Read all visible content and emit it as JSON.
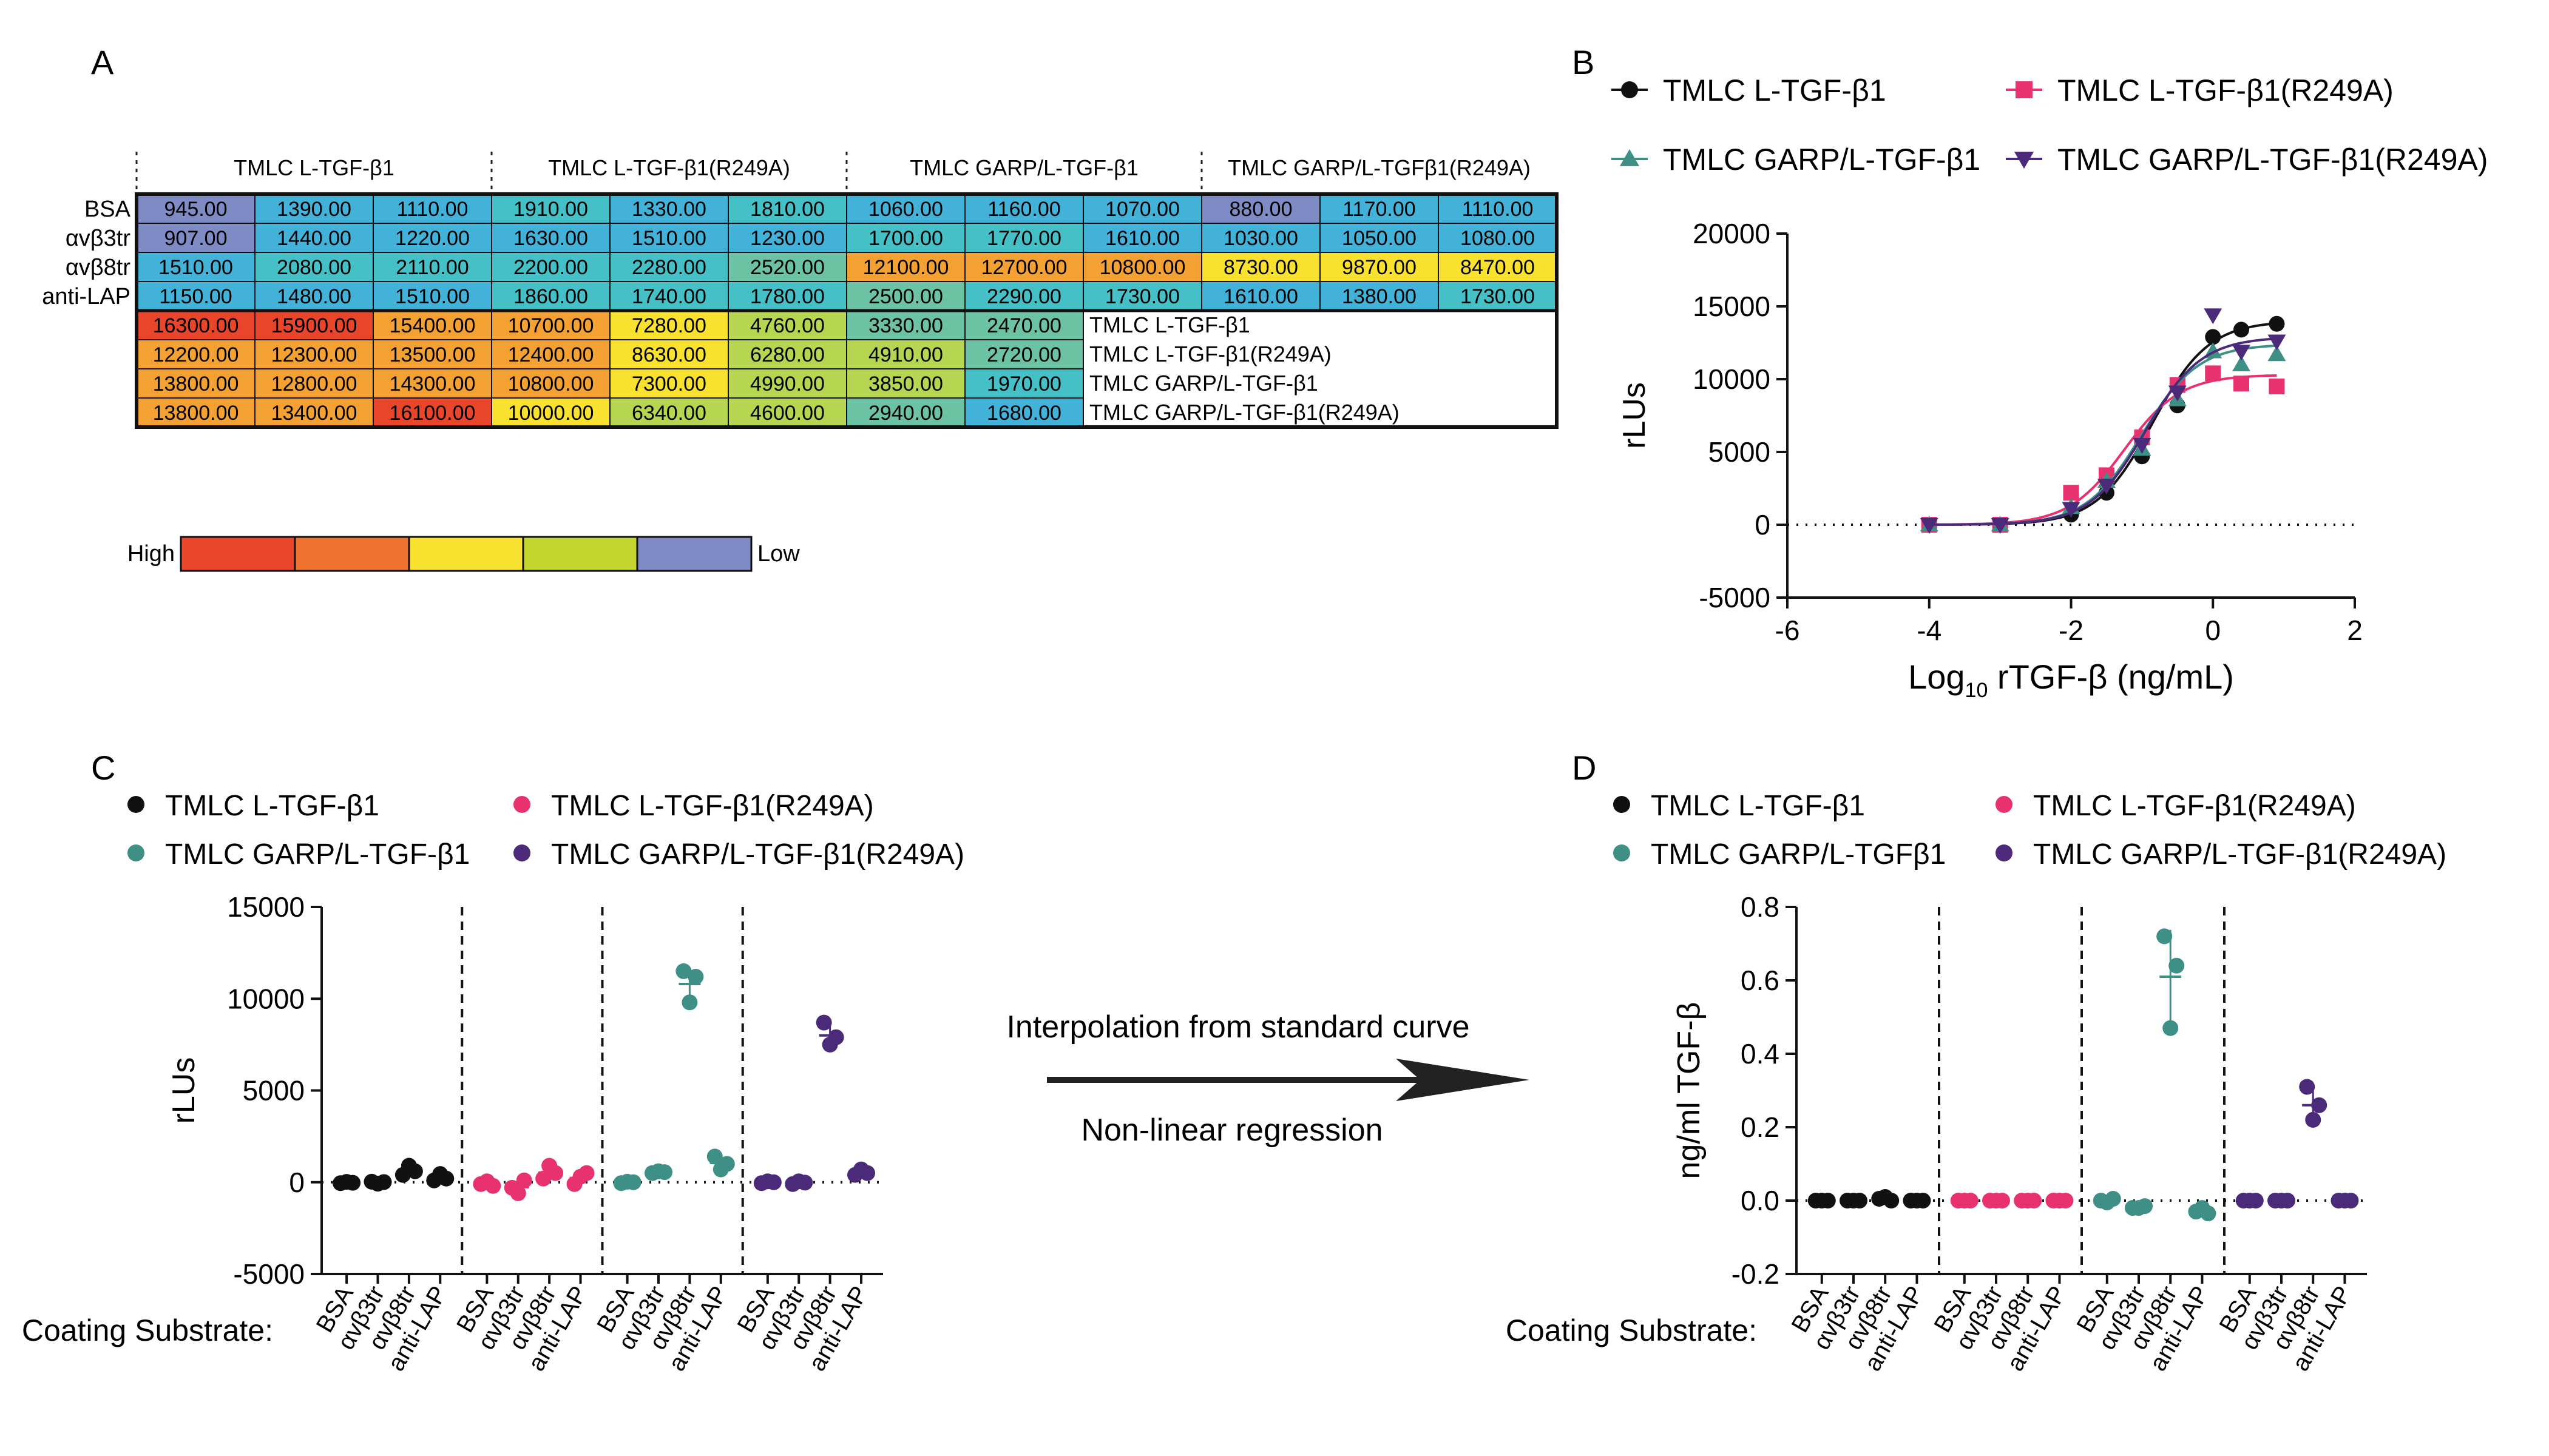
{
  "panels": {
    "a": "A",
    "b": "B",
    "c": "C",
    "d": "D"
  },
  "chart_data": [
    {
      "panel": "A",
      "type": "heatmap",
      "column_groups": [
        "TMLC L-TGF-β1",
        "TMLC L-TGF-β1(R249A)",
        "TMLC GARP/L-TGF-β1",
        "TMLC GARP/L-TGFβ1(R249A)"
      ],
      "rows": [
        {
          "label": "BSA",
          "values": [
            "945.00",
            "1390.00",
            "1110.00",
            "1910.00",
            "1330.00",
            "1810.00",
            "1060.00",
            "1160.00",
            "1070.00",
            "880.00",
            "1170.00",
            "1110.00"
          ]
        },
        {
          "label": "αvβ3tr",
          "values": [
            "907.00",
            "1440.00",
            "1220.00",
            "1630.00",
            "1510.00",
            "1230.00",
            "1700.00",
            "1770.00",
            "1610.00",
            "1030.00",
            "1050.00",
            "1080.00"
          ]
        },
        {
          "label": "αvβ8tr",
          "values": [
            "1510.00",
            "2080.00",
            "2110.00",
            "2200.00",
            "2280.00",
            "2520.00",
            "12100.00",
            "12700.00",
            "10800.00",
            "8730.00",
            "9870.00",
            "8470.00"
          ]
        },
        {
          "label": "anti-LAP",
          "values": [
            "1150.00",
            "1480.00",
            "1510.00",
            "1860.00",
            "1740.00",
            "1780.00",
            "2500.00",
            "2290.00",
            "1730.00",
            "1610.00",
            "1380.00",
            "1730.00"
          ]
        },
        {
          "label": "TMLC L-TGF-β1",
          "values": [
            "16300.00",
            "15900.00",
            "15400.00",
            "10700.00",
            "7280.00",
            "4760.00",
            "3330.00",
            "2470.00"
          ]
        },
        {
          "label": "TMLC L-TGF-β1(R249A)",
          "values": [
            "12200.00",
            "12300.00",
            "13500.00",
            "12400.00",
            "8630.00",
            "6280.00",
            "4910.00",
            "2720.00"
          ]
        },
        {
          "label": "TMLC GARP/L-TGF-β1",
          "values": [
            "13800.00",
            "12800.00",
            "14300.00",
            "10800.00",
            "7300.00",
            "4990.00",
            "3850.00",
            "1970.00"
          ]
        },
        {
          "label": "TMLC GARP/L-TGF-β1(R249A)",
          "values": [
            "13800.00",
            "13400.00",
            "16100.00",
            "10000.00",
            "6340.00",
            "4600.00",
            "2940.00",
            "1680.00"
          ]
        }
      ],
      "scale": {
        "high_label": "High",
        "low_label": "Low",
        "colors": [
          "#e8452b",
          "#ef7330",
          "#f9e12f",
          "#c3d52f",
          "#7f8bc4"
        ]
      },
      "cell_colors": {
        "lowest": "#7f8bc4",
        "low": "#43b2d9",
        "mid_low": "#44c0c6",
        "mid": "#6cc3a3",
        "mid_high": "#b6d652",
        "high_yellow": "#f9e12f",
        "high_orange": "#f4a133",
        "highest": "#e9452b"
      }
    },
    {
      "panel": "B",
      "type": "line",
      "xlabel_main": "Log",
      "xlabel_sub": "10",
      "xlabel_rest": " rTGF-β (ng/mL)",
      "ylabel": "rLUs",
      "xlim": [
        -6,
        2
      ],
      "ylim": [
        -5000,
        20000
      ],
      "xticks": [
        "-6",
        "-4",
        "-2",
        "0",
        "2"
      ],
      "yticks": [
        "-5000",
        "0",
        "5000",
        "10000",
        "15000",
        "20000"
      ],
      "series": [
        {
          "name": "TMLC L-TGF-β1",
          "color": "#111111",
          "marker": "circle",
          "x": [
            -4,
            -3,
            -2,
            -1.5,
            -1,
            -0.5,
            0,
            0.4,
            0.9
          ],
          "y": [
            0,
            0,
            700,
            2200,
            4700,
            8200,
            12900,
            13400,
            13800
          ],
          "fit_top": 14000,
          "fit_ec50": -0.85,
          "fit_hill": 1.1
        },
        {
          "name": "TMLC L-TGF-β1(R249A)",
          "color": "#e8326f",
          "marker": "square",
          "x": [
            -4,
            -3,
            -2,
            -1.5,
            -1,
            -0.5,
            0,
            0.4,
            0.9
          ],
          "y": [
            0,
            0,
            2200,
            3400,
            6000,
            9600,
            10400,
            9700,
            9500
          ],
          "fit_top": 10300,
          "fit_ec50": -1.25,
          "fit_hill": 1.1
        },
        {
          "name": "TMLC GARP/L-TGF-β1",
          "color": "#3e8f85",
          "marker": "triangle",
          "x": [
            -4,
            -3,
            -2,
            -1.5,
            -1,
            -0.5,
            0,
            0.4,
            0.9
          ],
          "y": [
            0,
            0,
            1200,
            3000,
            5200,
            8600,
            11900,
            11000,
            11700
          ],
          "fit_top": 12400,
          "fit_ec50": -1.0,
          "fit_hill": 1.1
        },
        {
          "name": "TMLC GARP/L-TGF-β1(R249A)",
          "color": "#4b2a7a",
          "marker": "triangle-down",
          "x": [
            -4,
            -3,
            -2,
            -1.5,
            -1,
            -0.5,
            0,
            0.4,
            0.9
          ],
          "y": [
            0,
            0,
            1100,
            2700,
            5500,
            9100,
            14400,
            11900,
            12600
          ],
          "fit_top": 12900,
          "fit_ec50": -0.95,
          "fit_hill": 1.1
        }
      ]
    },
    {
      "panel": "C",
      "type": "scatter",
      "ylabel": "rLUs",
      "ylim": [
        -5000,
        15000
      ],
      "yticks": [
        "-5000",
        "0",
        "5000",
        "10000",
        "15000"
      ],
      "axis_title": "Coating Substrate:",
      "categories": [
        "BSA",
        "αvβ3tr",
        "αvβ8tr",
        "anti-LAP"
      ],
      "series": [
        {
          "name": "TMLC L-TGF-β1",
          "color": "#111111",
          "points": [
            [
              -50,
              20,
              -30
            ],
            [
              30,
              -80,
              10
            ],
            [
              400,
              900,
              600
            ],
            [
              100,
              450,
              200
            ]
          ],
          "means": [
            -20,
            -10,
            630,
            250
          ]
        },
        {
          "name": "TMLC L-TGF-β1(R249A)",
          "color": "#e8326f",
          "points": [
            [
              -100,
              50,
              -200
            ],
            [
              -300,
              -600,
              100
            ],
            [
              200,
              900,
              500
            ],
            [
              -100,
              300,
              500
            ]
          ],
          "means": [
            -80,
            -270,
            530,
            230
          ]
        },
        {
          "name": "TMLC GARP/L-TGF-β1",
          "color": "#3e8f85",
          "points": [
            [
              -50,
              30,
              0
            ],
            [
              500,
              600,
              550
            ],
            [
              11500,
              9800,
              11200
            ],
            [
              1400,
              700,
              1000
            ]
          ],
          "means": [
            0,
            550,
            10800,
            1050
          ]
        },
        {
          "name": "TMLC GARP/L-TGF-β1(R249A)",
          "color": "#4b2a7a",
          "points": [
            [
              -50,
              50,
              0
            ],
            [
              -100,
              50,
              -20
            ],
            [
              8700,
              7500,
              7900
            ],
            [
              400,
              700,
              500
            ]
          ],
          "means": [
            0,
            -20,
            8000,
            530
          ]
        }
      ]
    },
    {
      "panel": "D",
      "type": "scatter",
      "ylabel": "ng/ml TGF-β",
      "ylim": [
        -0.2,
        0.8
      ],
      "yticks": [
        "-0.2",
        "0.0",
        "0.2",
        "0.4",
        "0.6",
        "0.8"
      ],
      "axis_title": "Coating Substrate:",
      "categories": [
        "BSA",
        "αvβ3tr",
        "αvβ8tr",
        "anti-LAP"
      ],
      "series": [
        {
          "name": "TMLC L-TGF-β1",
          "color": "#111111",
          "points": [
            [
              0,
              0,
              0
            ],
            [
              0,
              0,
              0
            ],
            [
              0.005,
              0.01,
              0
            ],
            [
              0,
              0,
              0
            ]
          ],
          "means": [
            0,
            0,
            0.005,
            0
          ]
        },
        {
          "name": "TMLC L-TGF-β1(R249A)",
          "color": "#e8326f",
          "points": [
            [
              0,
              0,
              0
            ],
            [
              0,
              0,
              0
            ],
            [
              0,
              0,
              0
            ],
            [
              0,
              0,
              0
            ]
          ],
          "means": [
            0,
            0,
            0,
            0
          ]
        },
        {
          "name": "TMLC GARP/L-TGFβ1",
          "color": "#3e8f85",
          "points": [
            [
              0,
              -0.005,
              0.005
            ],
            [
              -0.02,
              -0.02,
              -0.015
            ],
            [
              0.72,
              0.47,
              0.64
            ],
            [
              -0.03,
              -0.02,
              -0.035
            ]
          ],
          "means": [
            0,
            -0.02,
            0.61,
            -0.03
          ]
        },
        {
          "name": "TMLC GARP/L-TGF-β1(R249A)",
          "color": "#4b2a7a",
          "points": [
            [
              0,
              0,
              0
            ],
            [
              0,
              0,
              0
            ],
            [
              0.31,
              0.22,
              0.26
            ],
            [
              0,
              0,
              0
            ]
          ],
          "means": [
            0,
            0,
            0.26,
            0
          ]
        }
      ]
    }
  ],
  "arrow": {
    "top_text": "Interpolation from standard curve",
    "bottom_text": "Non-linear regression"
  }
}
